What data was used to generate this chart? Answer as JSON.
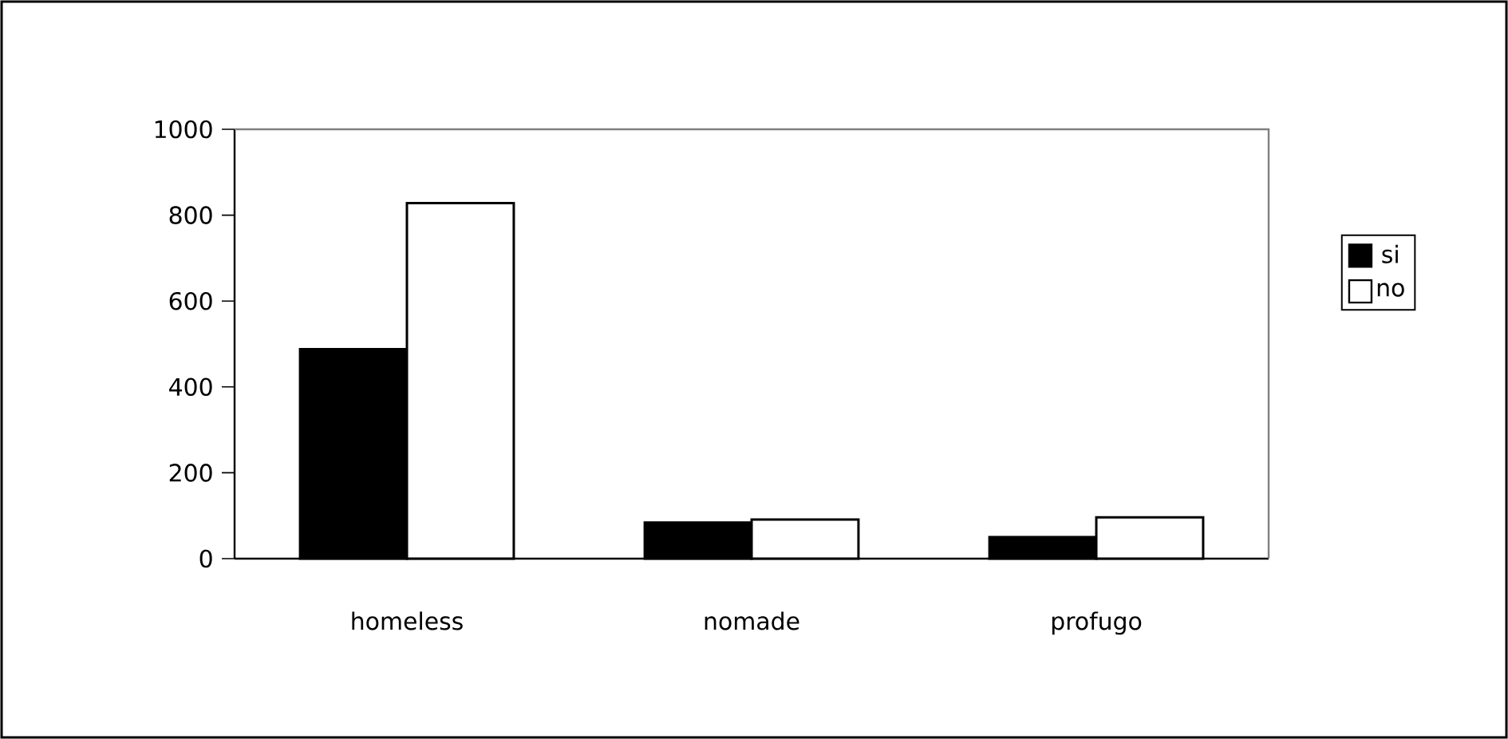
{
  "chart_data": {
    "type": "bar",
    "categories": [
      "homeless",
      "nomade",
      "profugo"
    ],
    "series": [
      {
        "name": "si",
        "color": "#000000",
        "values": [
          488,
          84,
          50
        ]
      },
      {
        "name": "no",
        "color": "#ffffff",
        "values": [
          828,
          91,
          96
        ]
      }
    ],
    "ylim": [
      0,
      1000
    ],
    "yticks": [
      0,
      200,
      400,
      600,
      800,
      1000
    ],
    "legend": "right"
  }
}
